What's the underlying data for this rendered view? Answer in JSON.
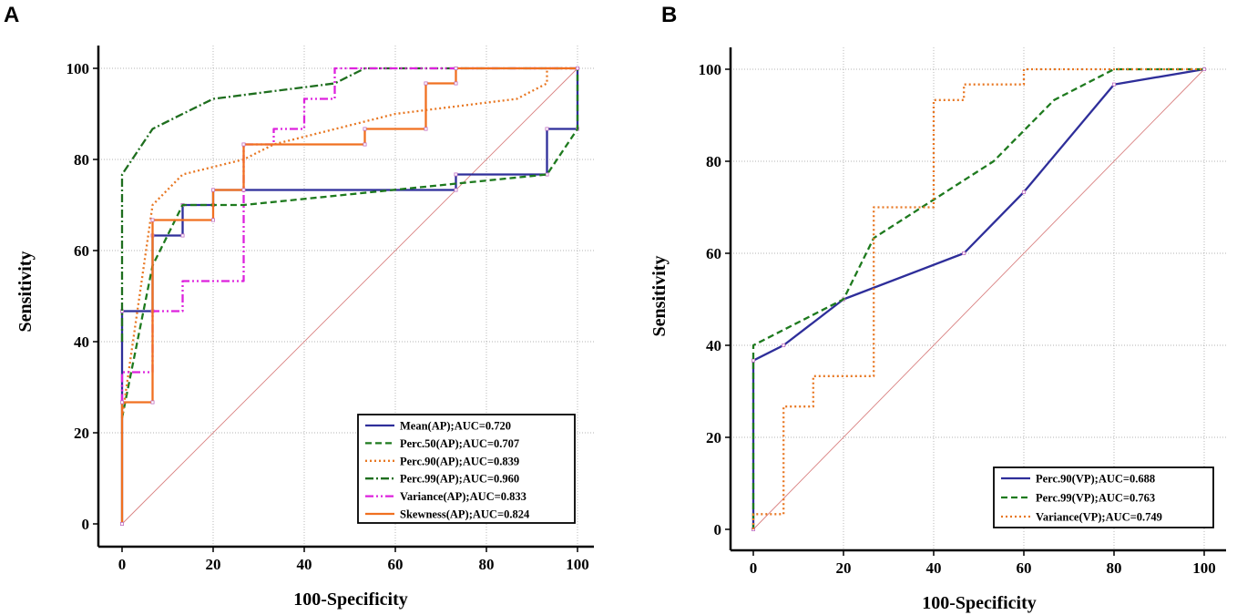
{
  "chart_data": [
    {
      "panel": "A",
      "type": "line",
      "title": "",
      "xlabel": "100-Specificity",
      "ylabel": "Sensitivity",
      "xlim": [
        0,
        100
      ],
      "ylim": [
        0,
        100
      ],
      "xticks": [
        0,
        20,
        40,
        60,
        80,
        100
      ],
      "yticks": [
        0,
        20,
        40,
        60,
        80,
        100
      ],
      "grid": true,
      "legend_position": "bottom-right",
      "reference_line": {
        "name": "chance",
        "color": "#d98080",
        "points": [
          [
            0,
            0
          ],
          [
            100,
            100
          ]
        ]
      },
      "series": [
        {
          "name": "Mean(AP);AUC=0.720",
          "color": "#2e2e9a",
          "dash": "solid",
          "markers": true,
          "points": [
            [
              0,
              0
            ],
            [
              0,
              46.7
            ],
            [
              6.7,
              46.7
            ],
            [
              6.7,
              63.3
            ],
            [
              13.3,
              63.3
            ],
            [
              13.3,
              70
            ],
            [
              20,
              70
            ],
            [
              20,
              73.3
            ],
            [
              73.3,
              73.3
            ],
            [
              73.3,
              76.7
            ],
            [
              93.3,
              76.7
            ],
            [
              93.3,
              86.7
            ],
            [
              100,
              86.7
            ],
            [
              100,
              100
            ]
          ]
        },
        {
          "name": "Perc.50(AP);AUC=0.707",
          "color": "#1e7a1e",
          "dash": "dashed",
          "markers": false,
          "points": [
            [
              0,
              23.3
            ],
            [
              6.7,
              56.7
            ],
            [
              13.3,
              70
            ],
            [
              26.7,
              70
            ],
            [
              93.3,
              76.7
            ],
            [
              100,
              86.7
            ],
            [
              100,
              100
            ]
          ]
        },
        {
          "name": "Perc.90(AP);AUC=0.839",
          "color": "#e87722",
          "dash": "dotted",
          "markers": false,
          "points": [
            [
              0,
              23.3
            ],
            [
              6.7,
              70
            ],
            [
              13.3,
              76.7
            ],
            [
              26.7,
              80
            ],
            [
              33.3,
              83.3
            ],
            [
              60,
              90
            ],
            [
              86.7,
              93.3
            ],
            [
              93.3,
              96.7
            ],
            [
              93.3,
              100
            ],
            [
              100,
              100
            ]
          ]
        },
        {
          "name": "Perc.99(AP);AUC=0.960",
          "color": "#1e6e1e",
          "dash": "dashdot",
          "markers": false,
          "points": [
            [
              0,
              40
            ],
            [
              0,
              76.7
            ],
            [
              6.7,
              86.7
            ],
            [
              13.3,
              90
            ],
            [
              20,
              93.3
            ],
            [
              46.7,
              96.7
            ],
            [
              53.3,
              100
            ],
            [
              100,
              100
            ]
          ]
        },
        {
          "name": "Variance(AP);AUC=0.833",
          "color": "#dd22dd",
          "dash": "dashdotdot",
          "markers": false,
          "points": [
            [
              0,
              26.7
            ],
            [
              0,
              33.3
            ],
            [
              6.7,
              33.3
            ],
            [
              6.7,
              46.7
            ],
            [
              13.3,
              46.7
            ],
            [
              13.3,
              53.3
            ],
            [
              26.7,
              53.3
            ],
            [
              26.7,
              83.3
            ],
            [
              33.3,
              83.3
            ],
            [
              33.3,
              86.7
            ],
            [
              40,
              86.7
            ],
            [
              40,
              93.3
            ],
            [
              46.7,
              93.3
            ],
            [
              46.7,
              100
            ],
            [
              100,
              100
            ]
          ]
        },
        {
          "name": "Skewness(AP);AUC=0.824",
          "color": "#f07020",
          "dash": "solid",
          "markers": true,
          "points": [
            [
              0,
              0
            ],
            [
              0,
              26.7
            ],
            [
              6.7,
              26.7
            ],
            [
              6.7,
              66.7
            ],
            [
              20,
              66.7
            ],
            [
              20,
              73.3
            ],
            [
              26.7,
              73.3
            ],
            [
              26.7,
              83.3
            ],
            [
              53.3,
              83.3
            ],
            [
              53.3,
              86.7
            ],
            [
              66.7,
              86.7
            ],
            [
              66.7,
              96.7
            ],
            [
              73.3,
              96.7
            ],
            [
              73.3,
              100
            ],
            [
              100,
              100
            ]
          ]
        }
      ]
    },
    {
      "panel": "B",
      "type": "line",
      "title": "",
      "xlabel": "100-Specificity",
      "ylabel": "Sensitivity",
      "xlim": [
        0,
        100
      ],
      "ylim": [
        0,
        100
      ],
      "xticks": [
        0,
        20,
        40,
        60,
        80,
        100
      ],
      "yticks": [
        0,
        20,
        40,
        60,
        80,
        100
      ],
      "grid": true,
      "legend_position": "bottom-right",
      "reference_line": {
        "name": "chance",
        "color": "#d98080",
        "points": [
          [
            0,
            0
          ],
          [
            100,
            100
          ]
        ]
      },
      "series": [
        {
          "name": "Perc.90(VP);AUC=0.688",
          "color": "#2e2e9a",
          "dash": "solid",
          "markers": true,
          "points": [
            [
              0,
              0
            ],
            [
              0,
              36.7
            ],
            [
              6.7,
              40
            ],
            [
              20,
              50
            ],
            [
              46.7,
              60
            ],
            [
              60,
              73.3
            ],
            [
              80,
              96.7
            ],
            [
              100,
              100
            ]
          ]
        },
        {
          "name": "Perc.99(VP);AUC=0.763",
          "color": "#1e7a1e",
          "dash": "dashed",
          "markers": false,
          "points": [
            [
              0,
              0
            ],
            [
              0,
              40
            ],
            [
              20,
              50
            ],
            [
              26.7,
              63.3
            ],
            [
              53.3,
              80
            ],
            [
              66.7,
              93.3
            ],
            [
              80,
              100
            ],
            [
              100,
              100
            ]
          ]
        },
        {
          "name": "Variance(VP);AUC=0.749",
          "color": "#e87722",
          "dash": "dotted",
          "markers": false,
          "points": [
            [
              0,
              0
            ],
            [
              0,
              3.3
            ],
            [
              6.7,
              3.3
            ],
            [
              6.7,
              26.7
            ],
            [
              13.3,
              26.7
            ],
            [
              13.3,
              33.3
            ],
            [
              26.7,
              33.3
            ],
            [
              26.7,
              70
            ],
            [
              40,
              70
            ],
            [
              40,
              93.3
            ],
            [
              46.7,
              93.3
            ],
            [
              46.7,
              96.7
            ],
            [
              60,
              96.7
            ],
            [
              60,
              100
            ],
            [
              100,
              100
            ]
          ]
        }
      ]
    }
  ]
}
